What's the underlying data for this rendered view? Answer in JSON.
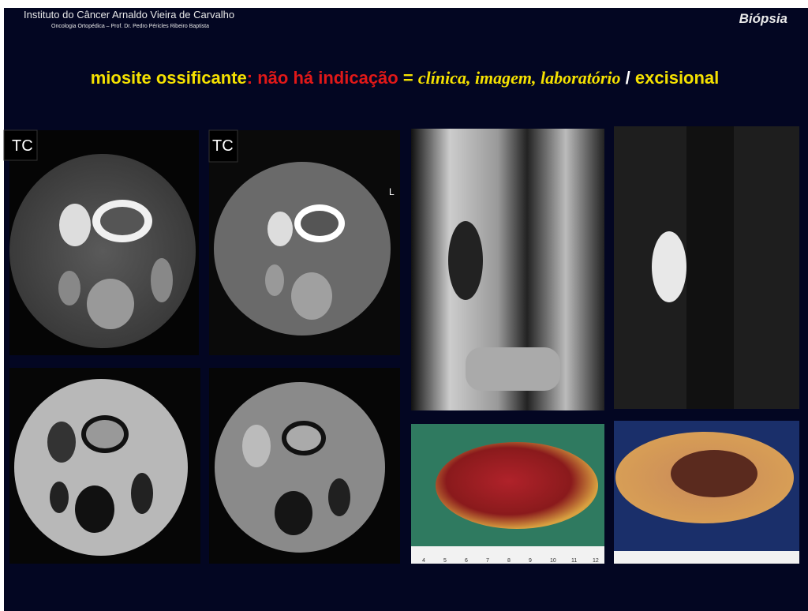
{
  "header": {
    "institution": "Instituto do Câncer Arnaldo Vieira de Carvalho",
    "subtitle": "Oncologia Ortopédica – Prof. Dr. Pedro Péricles Ribeiro Baptista",
    "section": "Biópsia"
  },
  "title": {
    "term": "miosite ossificante",
    "colon": ":",
    "statement": "não há indicação",
    "equals": "=",
    "criteria": "clínica, imagem, laboratório",
    "slash": "/",
    "method": "excisional"
  },
  "images": {
    "ct_label_1": "TC",
    "ct_label_2": "TC",
    "side_marker": "L"
  },
  "ruler": {
    "marks": [
      "4",
      "5",
      "6",
      "7",
      "8",
      "9",
      "10",
      "11",
      "12"
    ]
  }
}
